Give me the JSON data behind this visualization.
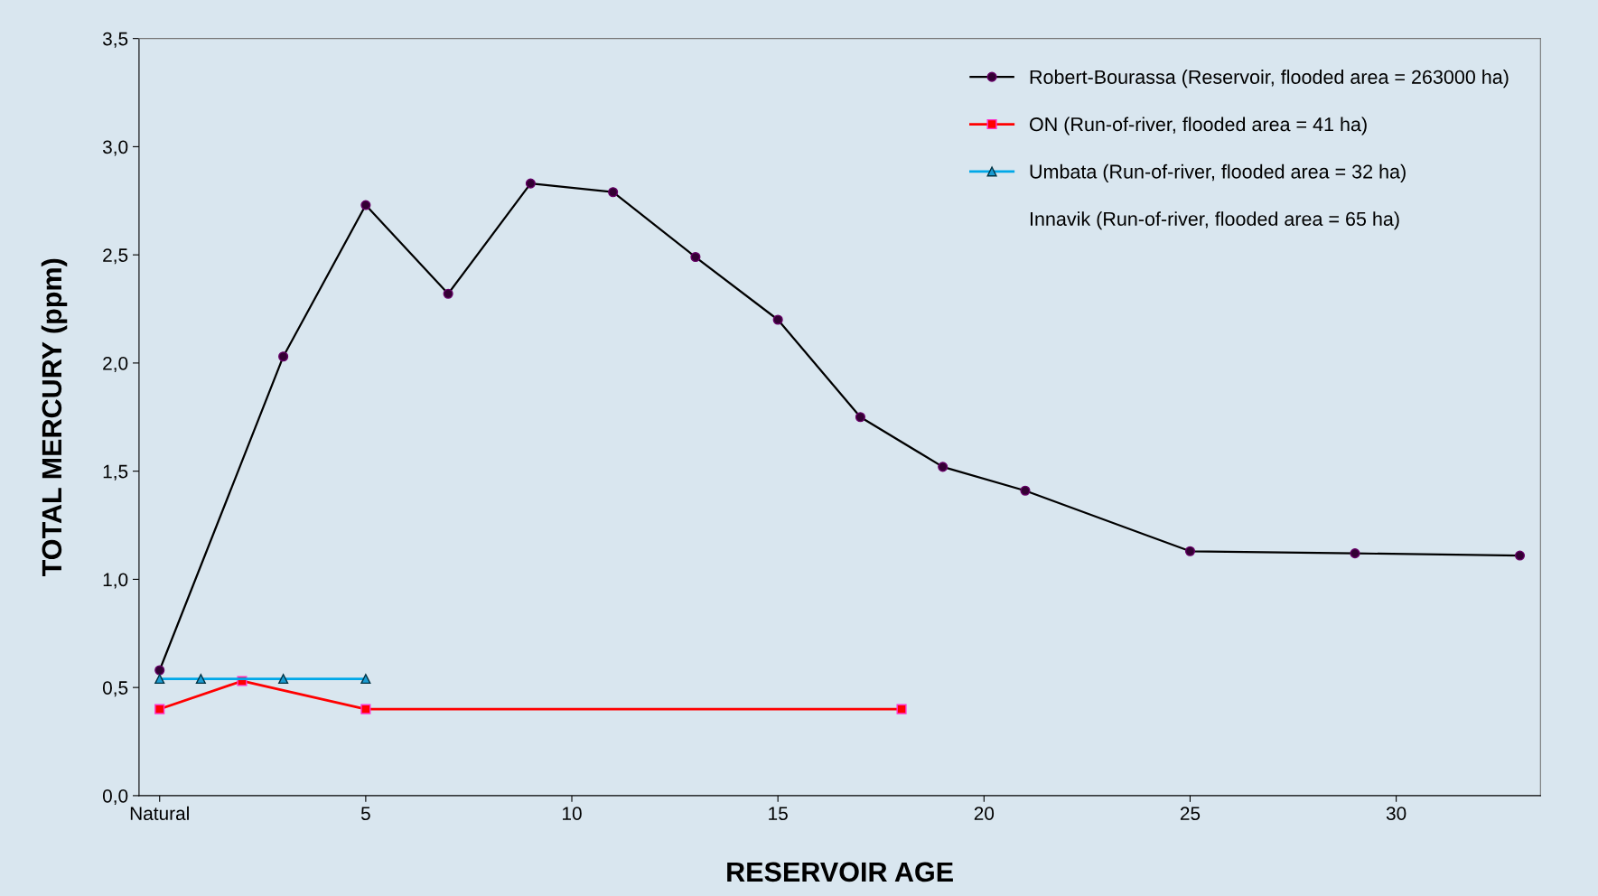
{
  "chart_data": {
    "type": "line",
    "xlabel": "RESERVOIR AGE",
    "ylabel": "TOTAL MERCURY (ppm)",
    "xlim": [
      -0.5,
      33.5
    ],
    "xticks": [
      {
        "value": 0,
        "label": "Natural"
      },
      5,
      10,
      15,
      20,
      25,
      30
    ],
    "ylim": [
      0,
      3.5
    ],
    "yticks": [
      {
        "value": 0,
        "label": "0,0"
      },
      {
        "value": 0.5,
        "label": "0,5"
      },
      {
        "value": 1,
        "label": "1,0"
      },
      {
        "value": 1.5,
        "label": "1,5"
      },
      {
        "value": 2,
        "label": "2,0"
      },
      {
        "value": 2.5,
        "label": "2,5"
      },
      {
        "value": 3,
        "label": "3,0"
      },
      {
        "value": 3.5,
        "label": "3,5"
      }
    ],
    "grid": false,
    "legend": "top right",
    "line_style": "solid",
    "series": [
      {
        "name": "Robert-Bourassa (Reservoir, flooded area = 263000 ha)",
        "color": "#000000",
        "marker": "circle",
        "x": [
          0,
          3,
          5,
          7,
          9,
          11,
          13,
          15,
          17,
          19,
          21,
          25,
          29,
          33
        ],
        "values": [
          0.58,
          2.03,
          2.73,
          2.32,
          2.83,
          2.79,
          2.49,
          2.2,
          1.75,
          1.52,
          1.41,
          1.13,
          1.12,
          1.11
        ]
      },
      {
        "name": "ON (Run-of-river, flooded area = 41 ha)",
        "color": "#ff0000",
        "marker": "square",
        "x": [
          0,
          2,
          5,
          18
        ],
        "values": [
          0.4,
          0.53,
          0.4,
          0.4
        ]
      },
      {
        "name": "Umbata (Run-of-river, flooded area = 32 ha)",
        "color": "#00a8e8",
        "marker": "triangle",
        "x": [
          0,
          1,
          3,
          5
        ],
        "values": [
          0.54,
          0.54,
          0.54,
          0.54
        ]
      },
      {
        "name": "Innavik (Run-of-river, flooded area = 65 ha)",
        "marker": "none"
      }
    ]
  }
}
